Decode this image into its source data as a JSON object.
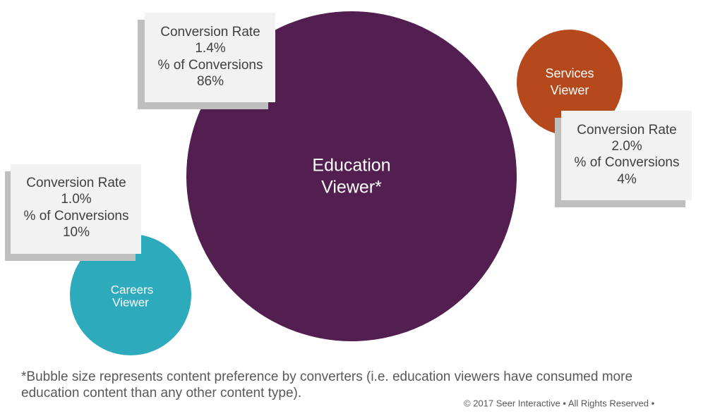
{
  "bubbles": [
    {
      "label_lines": [
        "Education",
        "Viewer*"
      ],
      "stats": [
        "Conversion Rate",
        "1.4%",
        "% of Conversions",
        "86%"
      ]
    },
    {
      "label_lines": [
        "Services",
        "Viewer"
      ],
      "stats": [
        "Conversion Rate",
        "2.0%",
        "% of Conversions",
        "4%"
      ]
    },
    {
      "label_lines": [
        "Careers",
        "Viewer"
      ],
      "stats": [
        "Conversion Rate",
        "1.0%",
        "% of Conversions",
        "10%"
      ]
    }
  ],
  "footnote_lines": [
    "*Bubble size represents content preference by converters (i.e. education viewers have consumed more",
    "education content than any other content type)."
  ],
  "copyright": "© 2017 Seer Interactive • All Rights Reserved •"
}
